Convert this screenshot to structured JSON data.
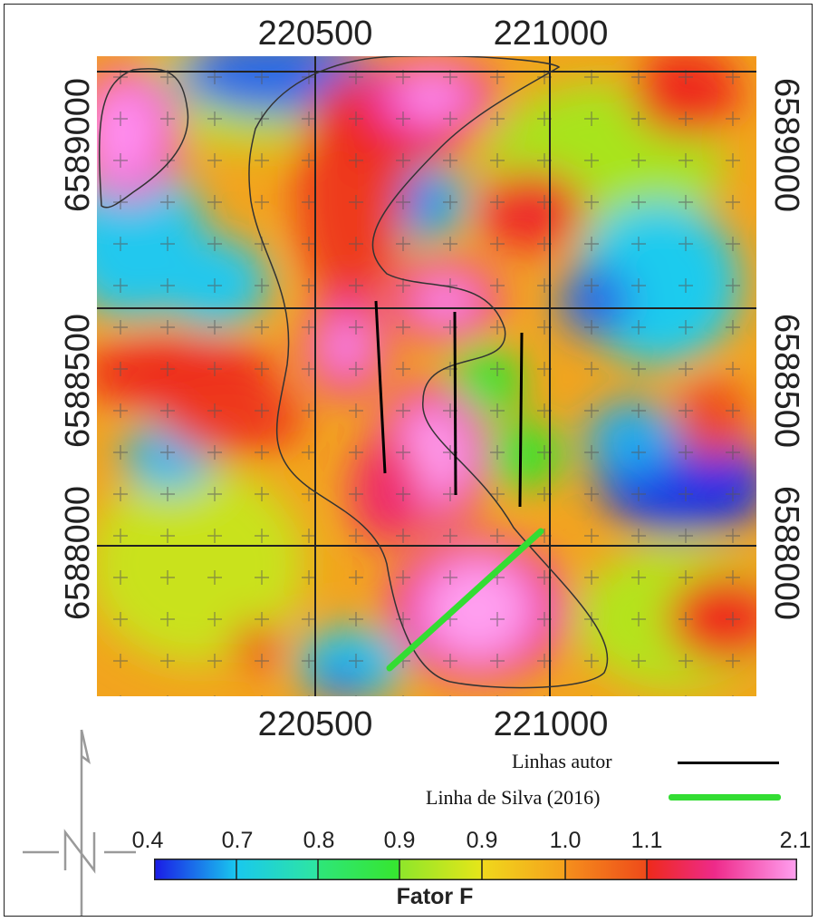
{
  "axes": {
    "x_ticks": [
      "220500",
      "221000"
    ],
    "y_ticks": [
      "6589000",
      "6588500",
      "6588000"
    ]
  },
  "legend": {
    "author_lines_label": "Linhas autor",
    "author_lines_color": "#000000",
    "silva_line_label": "Linha de Silva (2016)",
    "silva_line_color": "#33dd33"
  },
  "colorbar": {
    "title": "Fator F",
    "tick_labels": [
      "0.4",
      "0.7",
      "0.8",
      "0.9",
      "0.9",
      "1.0",
      "1.1",
      "2.1"
    ],
    "colors": [
      "#1a33e6",
      "#19c8ee",
      "#2ee62e",
      "#e6e619",
      "#f5a01c",
      "#ee2a1a",
      "#ff55dd"
    ]
  },
  "north_arrow": {
    "label": "N"
  }
}
